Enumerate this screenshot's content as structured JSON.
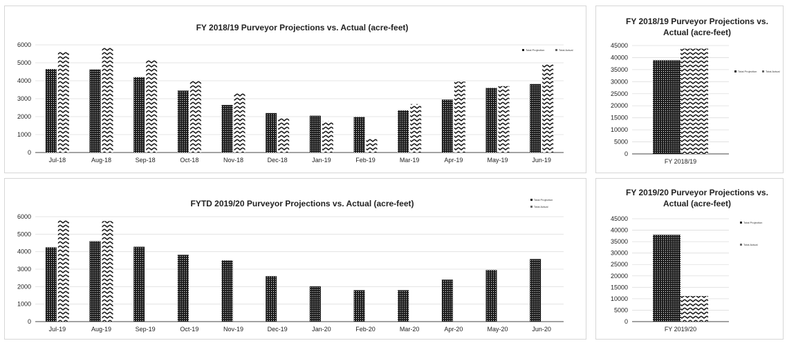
{
  "chart_data": [
    {
      "type": "bar",
      "title": "FY 2018/19 Purveyor Projections vs. Actual (acre-feet)",
      "categories": [
        "Jul-18",
        "Aug-18",
        "Sep-18",
        "Oct-18",
        "Nov-18",
        "Dec-18",
        "Jan-19",
        "Feb-19",
        "Mar-19",
        "Apr-19",
        "May-19",
        "Jun-19"
      ],
      "series": [
        {
          "name": "Total Projection",
          "values": [
            4650,
            4630,
            4200,
            3450,
            2650,
            2200,
            2050,
            1980,
            2350,
            2950,
            3600,
            3820
          ]
        },
        {
          "name": "Total Actual",
          "values": [
            5650,
            5850,
            5150,
            4000,
            3300,
            1900,
            1750,
            800,
            2700,
            3950,
            3700,
            4900
          ]
        }
      ],
      "ylim": [
        0,
        6000
      ],
      "yticks": [
        0,
        1000,
        2000,
        3000,
        4000,
        5000,
        6000
      ],
      "xlabel": "",
      "ylabel": "",
      "grid": true,
      "legend": "top-right"
    },
    {
      "type": "bar",
      "title": "FY 2018/19 Purveyor Projections  vs. Actual (acre-feet)",
      "categories": [
        "FY 2018/19"
      ],
      "series": [
        {
          "name": "Total Projection",
          "values": [
            38900
          ]
        },
        {
          "name": "Total Actual",
          "values": [
            43700
          ]
        }
      ],
      "ylim": [
        0,
        45000
      ],
      "yticks": [
        0,
        5000,
        10000,
        15000,
        20000,
        25000,
        30000,
        35000,
        40000,
        45000
      ],
      "xlabel": "",
      "ylabel": "",
      "grid": true,
      "legend": "right"
    },
    {
      "type": "bar",
      "title": "FYTD 2019/20 Purveyor Projections vs. Actual (acre-feet)",
      "categories": [
        "Jul-19",
        "Aug-19",
        "Sep-19",
        "Oct-19",
        "Nov-19",
        "Dec-19",
        "Jan-20",
        "Feb-20",
        "Mar-20",
        "Apr-20",
        "May-20",
        "Jun-20"
      ],
      "series": [
        {
          "name": "Total Projection",
          "values": [
            4250,
            4600,
            4280,
            3820,
            3500,
            2600,
            2020,
            1800,
            1800,
            2400,
            2950,
            3580
          ]
        },
        {
          "name": "Total Actual",
          "values": [
            5800,
            5750,
            null,
            null,
            null,
            null,
            null,
            null,
            null,
            null,
            null,
            null
          ]
        }
      ],
      "ylim": [
        0,
        6000
      ],
      "yticks": [
        0,
        1000,
        2000,
        3000,
        4000,
        5000,
        6000
      ],
      "xlabel": "",
      "ylabel": "",
      "grid": true,
      "legend": "top-right"
    },
    {
      "type": "bar",
      "title": "FY 2019/20 Purveyor Projections vs. Actual (acre-feet)",
      "categories": [
        "FY 2019/20"
      ],
      "series": [
        {
          "name": "Total Projection",
          "values": [
            38000
          ]
        },
        {
          "name": "Total Actual",
          "values": [
            11200
          ]
        }
      ],
      "ylim": [
        0,
        45000
      ],
      "yticks": [
        0,
        5000,
        10000,
        15000,
        20000,
        25000,
        30000,
        35000,
        40000,
        45000
      ],
      "xlabel": "",
      "ylabel": "",
      "grid": true,
      "legend": "right"
    }
  ],
  "colors": {
    "bar_fill": "#1a1a1a",
    "background": "#ffffff",
    "grid": "#dddddd",
    "axis": "#444444"
  }
}
